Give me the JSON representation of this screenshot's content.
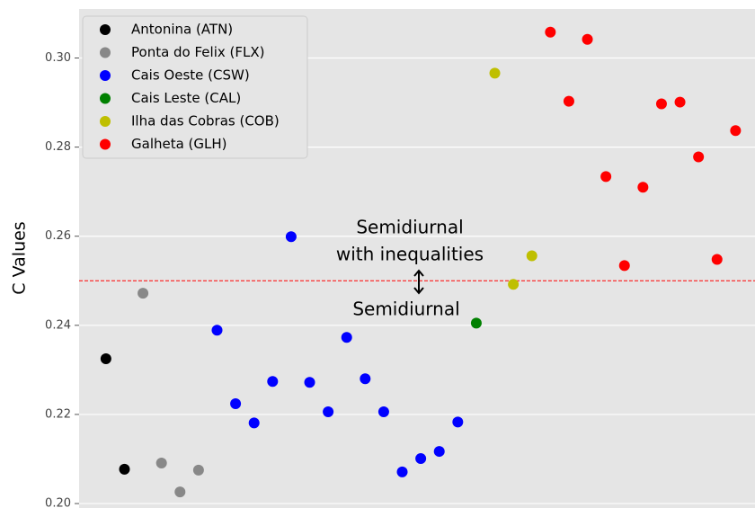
{
  "chart_data": {
    "type": "scatter",
    "ylabel": "C Values",
    "ylim": [
      0.199,
      0.311
    ],
    "xlim": [
      -0.45,
      36.05
    ],
    "yticks": [
      {
        "value": 0.2,
        "label": "0.20"
      },
      0.22,
      0.24,
      0.26,
      0.28,
      {
        "value": 0.3,
        "label": "0.30"
      }
    ],
    "grid": true,
    "legend": "upper left",
    "series": [
      {
        "name": "Antonina (ATN)",
        "color": "#000000",
        "x": [
          1,
          2
        ],
        "values": [
          0.2325,
          0.2077
        ]
      },
      {
        "name": "Ponta do Felix (FLX)",
        "color": "#888888",
        "x": [
          3,
          4,
          5,
          6
        ],
        "values": [
          0.2472,
          0.2091,
          0.2026,
          0.2075
        ]
      },
      {
        "name": "Cais Oeste (CSW)",
        "color": "#0000ff",
        "x": [
          7,
          8,
          9,
          10,
          11,
          12,
          13,
          14,
          15,
          16,
          17,
          18,
          19,
          20
        ],
        "values": [
          0.2389,
          0.2224,
          0.2181,
          0.2274,
          0.2599,
          0.2272,
          0.2206,
          0.2373,
          0.228,
          0.2206,
          0.2071,
          0.2101,
          0.2117,
          0.2183
        ]
      },
      {
        "name": "Cais Leste (CAL)",
        "color": "#008000",
        "x": [
          21
        ],
        "values": [
          0.2405
        ]
      },
      {
        "name": "Ilha das Cobras (COB)",
        "color": "#bfbf00",
        "x": [
          22,
          23,
          24
        ],
        "values": [
          0.2966,
          0.2492,
          0.2556
        ]
      },
      {
        "name": "Galheta (GLH)",
        "color": "#ff0000",
        "x": [
          25,
          26,
          27,
          28,
          29,
          30,
          31,
          32,
          33,
          34,
          35
        ],
        "values": [
          0.3058,
          0.2903,
          0.3042,
          0.2734,
          0.2534,
          0.271,
          0.2897,
          0.2901,
          0.2778,
          0.2548,
          0.2837
        ]
      }
    ],
    "hline": {
      "y": 0.25,
      "color": "#ff0000"
    },
    "annotations": [
      "Semidiurnal",
      "with inequalities",
      "Semidiurnal"
    ]
  }
}
